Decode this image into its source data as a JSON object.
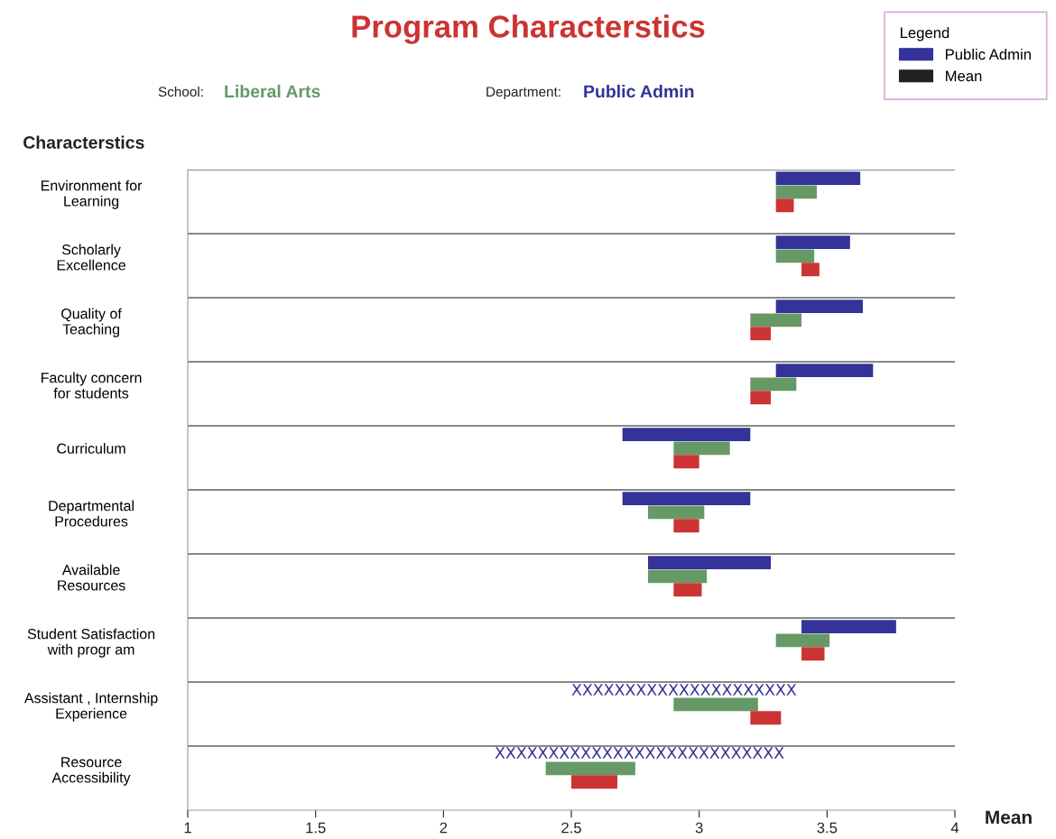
{
  "chart_data": {
    "type": "bar",
    "orientation": "horizontal",
    "title": "Program Characterstics",
    "xlabel": "Mean",
    "ylabel": "Characterstics",
    "legend_title": "Legend",
    "legend": "top right",
    "categories": [
      "Environment for\nLearning",
      "Scholarly\nExcellence",
      "Quality of\nTeaching",
      "Faculty concern\nfor students",
      "Curriculum",
      "Departmental\nProcedures",
      "Available\nResources",
      "Student Satisfaction\nwith progr am",
      "Assistant , Internship\nExperience",
      "Resource\nAccessibility"
    ],
    "series": [
      {
        "name": "Public Admin",
        "color": "#333399",
        "base": [
          3.3,
          3.3,
          3.3,
          3.3,
          2.7,
          2.7,
          2.8,
          3.4,
          null,
          null
        ],
        "values": [
          0.33,
          0.29,
          0.34,
          0.38,
          0.5,
          0.5,
          0.48,
          0.37,
          null,
          null
        ]
      },
      {
        "color": "#669966",
        "base": [
          3.3,
          3.3,
          3.2,
          3.2,
          2.9,
          2.8,
          2.8,
          3.3,
          2.9,
          2.4
        ],
        "values": [
          0.16,
          0.15,
          0.2,
          0.18,
          0.22,
          0.22,
          0.23,
          0.21,
          0.33,
          0.35
        ]
      },
      {
        "color": "#cc3333",
        "base": [
          3.3,
          3.4,
          3.2,
          3.2,
          2.9,
          2.9,
          2.9,
          3.4,
          3.2,
          2.5
        ],
        "values": [
          0.07,
          0.07,
          0.08,
          0.08,
          0.1,
          0.1,
          0.11,
          0.09,
          0.12,
          0.18
        ]
      }
    ],
    "xlim": [
      1,
      4
    ],
    "xticks": [
      1,
      1.5,
      2,
      2.5,
      3,
      3.5,
      4
    ],
    "grid": "y",
    "annotations": [
      "School:",
      "Liberal Arts",
      "Department:",
      "Public Admin",
      "Mean",
      "XXXXXXXXXXXXXXXXXXXXX",
      "XXXXXXXXXXXXXXXXXXXXXXXXXXX"
    ]
  }
}
